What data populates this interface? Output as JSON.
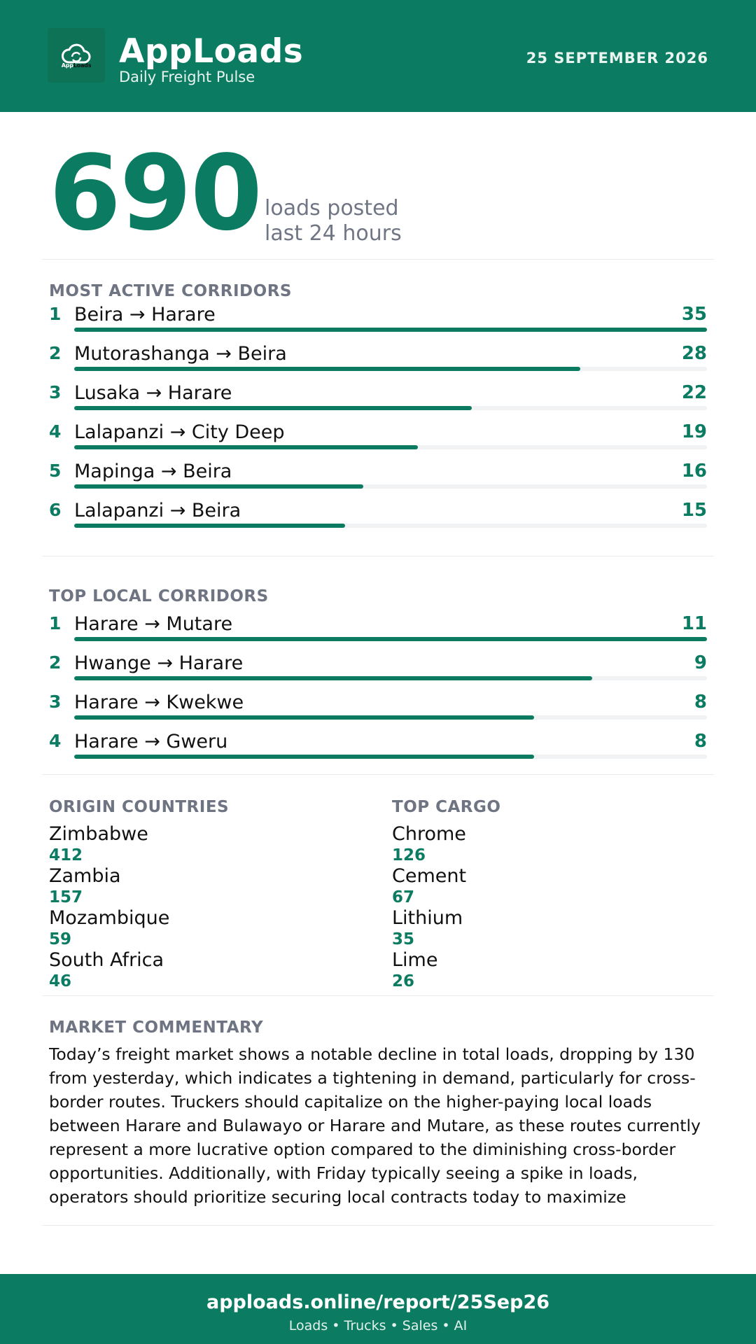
{
  "header": {
    "logo_text_a": "App",
    "logo_text_b": "Loads",
    "title": "AppLoads",
    "subtitle": "Daily Freight Pulse",
    "date": "25 SEPTEMBER 2026"
  },
  "summary": {
    "loads": "690",
    "label_line1": "loads posted",
    "label_line2": "last 24 hours"
  },
  "active_corridors": {
    "title": "MOST ACTIVE CORRIDORS",
    "max": 35,
    "items": [
      {
        "rank": "1",
        "route": "Beira → Harare",
        "count": 35
      },
      {
        "rank": "2",
        "route": "Mutorashanga → Beira",
        "count": 28
      },
      {
        "rank": "3",
        "route": "Lusaka → Harare",
        "count": 22
      },
      {
        "rank": "4",
        "route": "Lalapanzi → City Deep",
        "count": 19
      },
      {
        "rank": "5",
        "route": "Mapinga → Beira",
        "count": 16
      },
      {
        "rank": "6",
        "route": "Lalapanzi → Beira",
        "count": 15
      }
    ]
  },
  "local_corridors": {
    "title": "TOP LOCAL CORRIDORS",
    "max": 11,
    "items": [
      {
        "rank": "1",
        "route": "Harare → Mutare",
        "count": 11
      },
      {
        "rank": "2",
        "route": "Hwange → Harare",
        "count": 9
      },
      {
        "rank": "3",
        "route": "Harare → Kwekwe",
        "count": 8
      },
      {
        "rank": "4",
        "route": "Harare → Gweru",
        "count": 8
      }
    ]
  },
  "origin_countries": {
    "title": "ORIGIN COUNTRIES",
    "items": [
      {
        "name": "Zimbabwe",
        "value": "412"
      },
      {
        "name": "Zambia",
        "value": "157"
      },
      {
        "name": "Mozambique",
        "value": "59"
      },
      {
        "name": "South Africa",
        "value": "46"
      }
    ]
  },
  "top_cargo": {
    "title": "TOP CARGO",
    "items": [
      {
        "name": "Chrome",
        "value": "126"
      },
      {
        "name": "Cement",
        "value": "67"
      },
      {
        "name": "Lithium",
        "value": "35"
      },
      {
        "name": "Lime",
        "value": "26"
      }
    ]
  },
  "commentary": {
    "title": "MARKET COMMENTARY",
    "text": "Today’s freight market shows a notable decline in total loads, dropping by 130 from yesterday, which indicates a tightening in demand, particularly for cross-border routes. Truckers should capitalize on the higher-paying local loads between Harare and Bulawayo or Harare and Mutare, as these routes currently represent a more lucrative option compared to the diminishing cross-border opportunities. Additionally, with Friday typically seeing a spike in loads, operators should prioritize securing local contracts today to maximize"
  },
  "footer": {
    "url": "apploads.online/report/25Sep26",
    "tagline": "Loads • Trucks • Sales • AI"
  },
  "colors": {
    "brand": "#0b7c62",
    "muted": "#6f7482"
  }
}
